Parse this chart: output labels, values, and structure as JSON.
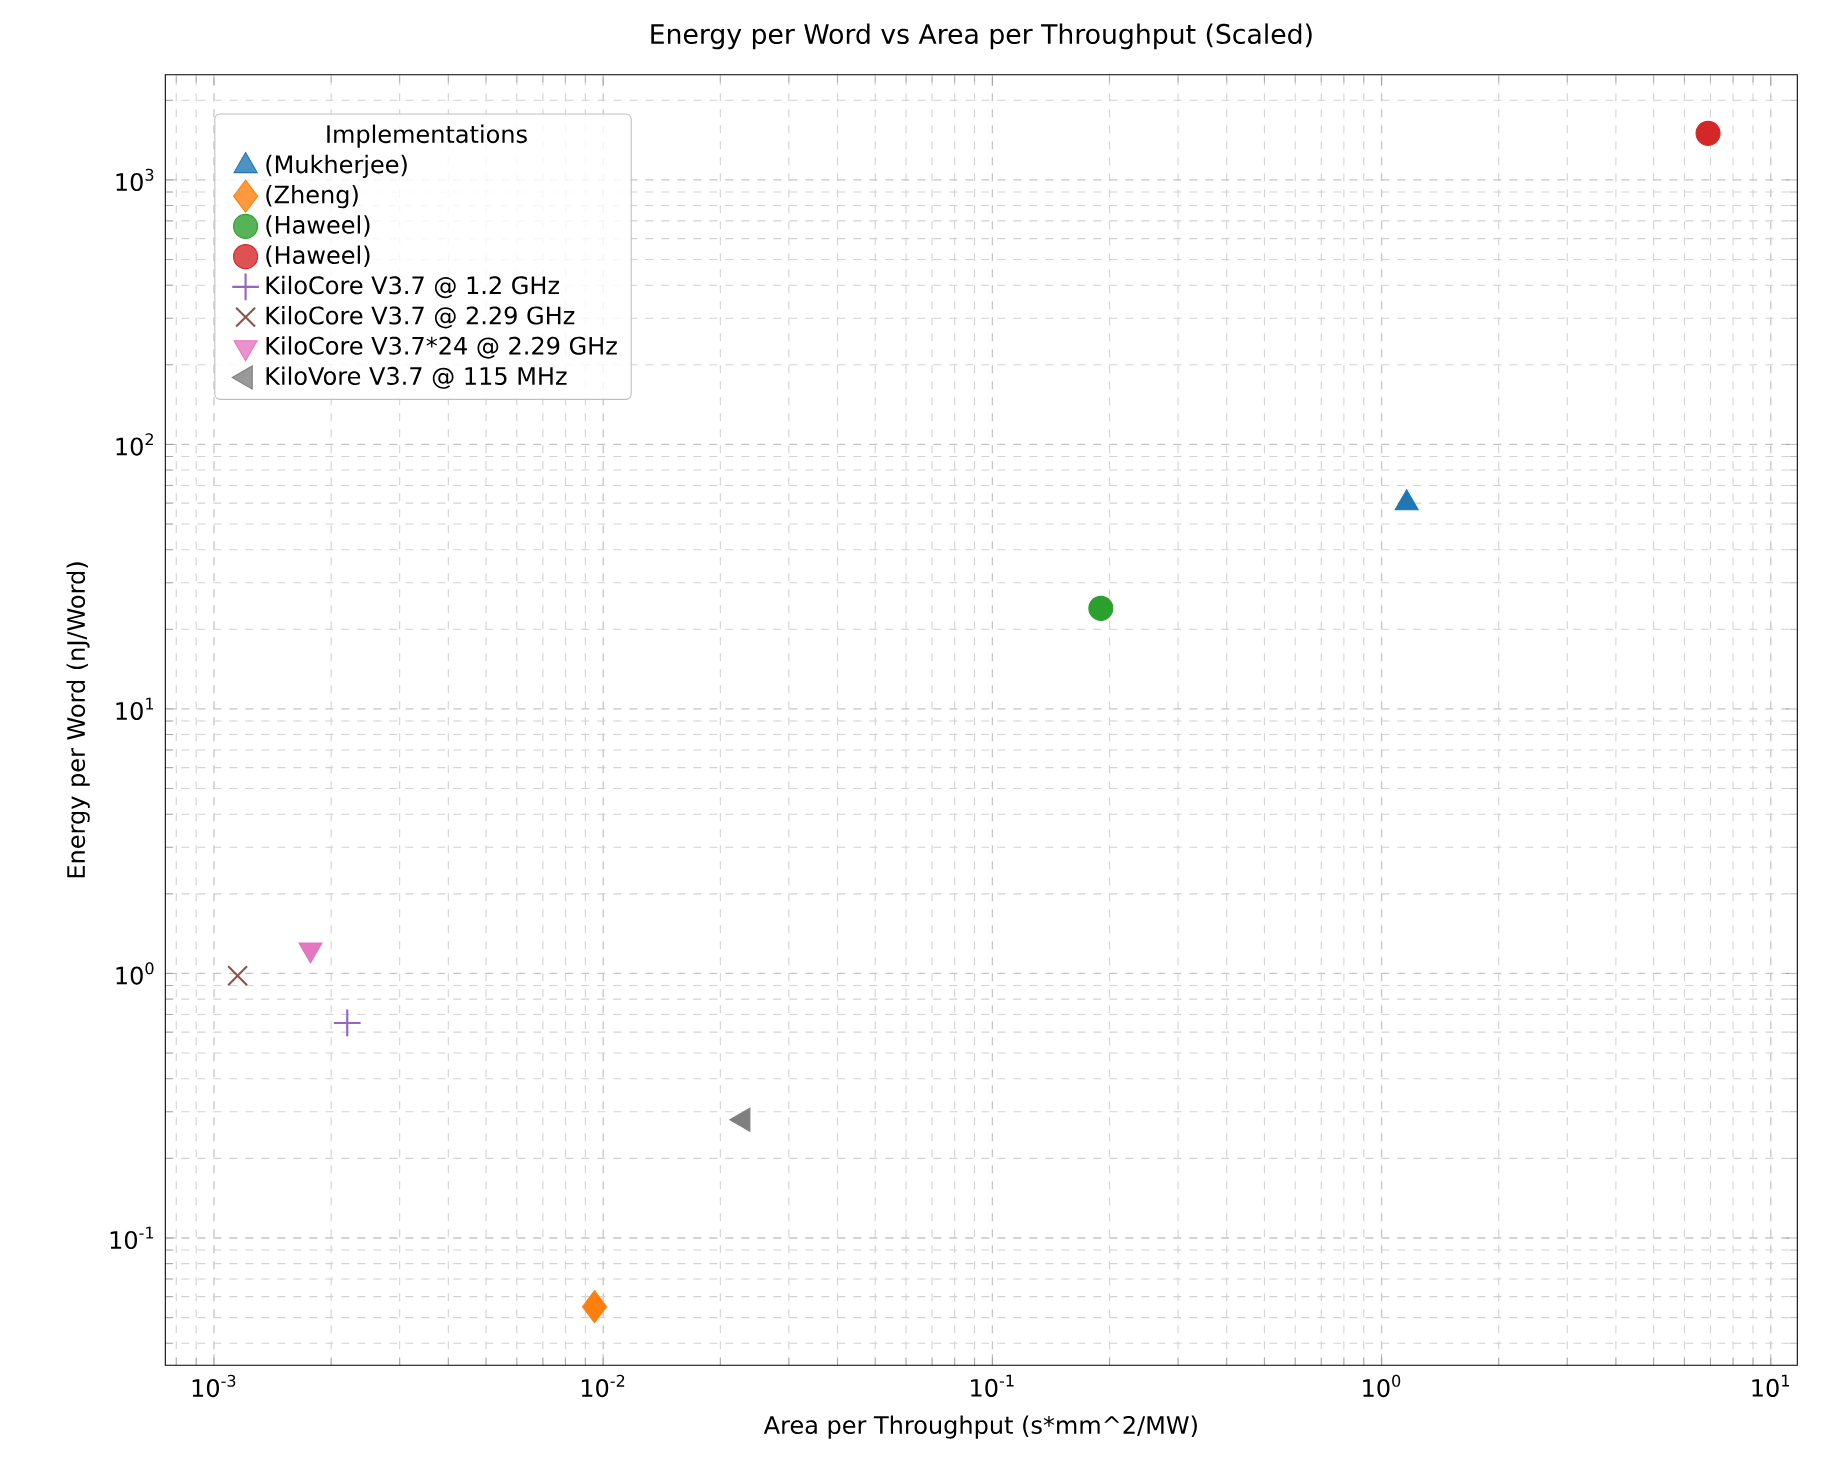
{
  "chart_data": {
    "type": "scatter",
    "title": "Energy per Word vs Area per Throughput (Scaled)",
    "xlabel": "Area per Throughput (s*mm^2/MW)",
    "ylabel": "Energy per Word (nJ/Word)",
    "legend_title": "Implementations",
    "log": "xy",
    "grid": true,
    "legend": "top left",
    "xlim": [
      0.00075,
      11.7
    ],
    "ylim": [
      0.033,
      2500
    ],
    "xticks": [
      {
        "value": 0.001,
        "label": "10$^{-3}$"
      },
      {
        "value": 0.01,
        "label": "10$^{-2}$"
      },
      {
        "value": 0.1,
        "label": "10$^{-1}$"
      },
      {
        "value": 1,
        "label": "10$^{0}$"
      },
      {
        "value": 10,
        "label": "10$^{1}$"
      }
    ],
    "yticks": [
      {
        "value": 0.1,
        "label": "10$^{-1}$"
      },
      {
        "value": 1,
        "label": "10$^{0}$"
      },
      {
        "value": 10,
        "label": "10$^{1}$"
      },
      {
        "value": 100,
        "label": "10$^{2}$"
      },
      {
        "value": 1000,
        "label": "10$^{3}$"
      }
    ],
    "series": [
      {
        "name": "(Mukherjee)",
        "color": "#1f77b4",
        "marker": "triangle",
        "x": [
          1.16
        ],
        "values": [
          60
        ]
      },
      {
        "name": "(Zheng)",
        "color": "#ff7f0e",
        "marker": "diamond",
        "x": [
          0.0095
        ],
        "values": [
          0.055
        ]
      },
      {
        "name": "(Haweel)",
        "color": "#2ca02c",
        "marker": "circle",
        "x": [
          0.19
        ],
        "values": [
          24
        ]
      },
      {
        "name": "(Haweel)",
        "color": "#d62728",
        "marker": "circle",
        "x": [
          6.9
        ],
        "values": [
          1500
        ]
      },
      {
        "name": "KiloCore V3.7 @ 1.2 GHz",
        "color": "#9467bd",
        "marker": "plus",
        "x": [
          0.0022
        ],
        "values": [
          0.65
        ]
      },
      {
        "name": "KiloCore V3.7 @ 2.29 GHz",
        "color": "#8c564b",
        "marker": "cross",
        "x": [
          0.00115
        ],
        "values": [
          0.98
        ]
      },
      {
        "name": "KiloCore V3.7*24 @ 2.29 GHz",
        "color": "#e377c2",
        "marker": "triangle-down",
        "x": [
          0.00177
        ],
        "values": [
          1.23
        ]
      },
      {
        "name": "KiloVore V3.7 @ 115 MHz",
        "color": "#7f7f7f",
        "marker": "triangle-left",
        "x": [
          0.0229
        ],
        "values": [
          0.28
        ]
      }
    ]
  }
}
